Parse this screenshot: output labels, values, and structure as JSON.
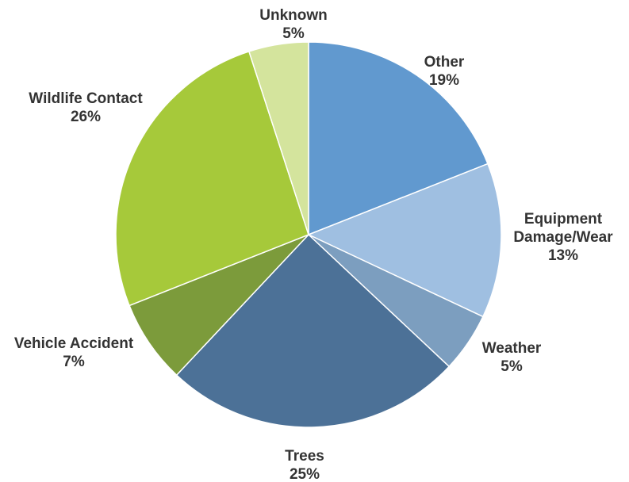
{
  "chart_data": {
    "type": "pie",
    "start_angle_deg": 0,
    "direction": "clockwise",
    "slices": [
      {
        "label": "Other",
        "percent_label": "19%",
        "value": 19,
        "color": "#6199cf"
      },
      {
        "label": "Equipment Damage/Wear",
        "percent_label": "13%",
        "value": 13,
        "color": "#9fbfe1"
      },
      {
        "label": "Weather",
        "percent_label": "5%",
        "value": 5,
        "color": "#7c9ebf"
      },
      {
        "label": "Trees",
        "percent_label": "25%",
        "value": 25,
        "color": "#4c7197"
      },
      {
        "label": "Vehicle Accident",
        "percent_label": "7%",
        "value": 7,
        "color": "#7c9b3b"
      },
      {
        "label": "Wildlife Contact",
        "percent_label": "26%",
        "value": 26,
        "color": "#a6c93a"
      },
      {
        "label": "Unknown",
        "percent_label": "5%",
        "value": 5,
        "color": "#d4e49d"
      }
    ],
    "slice_border_color": "#ffffff"
  },
  "labels": {
    "other": {
      "name": "Other",
      "pct": "19%"
    },
    "equipment": {
      "name_line1": "Equipment",
      "name_line2": "Damage/Wear",
      "pct": "13%"
    },
    "weather": {
      "name": "Weather",
      "pct": "5%"
    },
    "trees": {
      "name": "Trees",
      "pct": "25%"
    },
    "vehicle": {
      "name": "Vehicle Accident",
      "pct": "7%"
    },
    "wildlife": {
      "name": "Wildlife Contact",
      "pct": "26%"
    },
    "unknown": {
      "name": "Unknown",
      "pct": "5%"
    }
  }
}
